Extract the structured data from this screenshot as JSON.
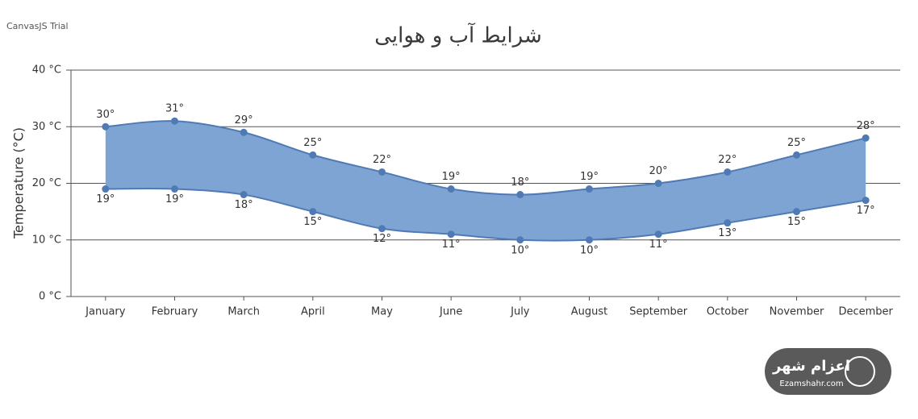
{
  "credit": "CanvasJS Trial",
  "watermark": {
    "title": "اعزام شهر",
    "url": "Ezamshahr.com"
  },
  "chart_data": {
    "type": "rangesplinearea",
    "title": "شرایط آب و هوایی",
    "y_label": "Temperature (°C)",
    "categories": [
      "January",
      "February",
      "March",
      "April",
      "May",
      "June",
      "July",
      "August",
      "September",
      "October",
      "November",
      "December"
    ],
    "color": "#7ea4d3",
    "line_color": "#4f7ab4",
    "series": [
      {
        "values": [
          30,
          31,
          29,
          25,
          22,
          19,
          18,
          19,
          20,
          22,
          25,
          28
        ],
        "value_labels": [
          "30°",
          "31°",
          "29°",
          "25°",
          "22°",
          "19°",
          "18°",
          "19°",
          "20°",
          "22°",
          "25°",
          "28°"
        ]
      },
      {
        "values": [
          19,
          19,
          18,
          15,
          12,
          11,
          10,
          10,
          11,
          13,
          15,
          17
        ],
        "value_labels": [
          "19°",
          "19°",
          "18°",
          "15°",
          "12°",
          "11°",
          "10°",
          "10°",
          "11°",
          "13°",
          "15°",
          "17°"
        ]
      }
    ],
    "ylim": [
      0,
      40
    ],
    "yticks": [
      {
        "value": 0,
        "label": "0 °C"
      },
      {
        "value": 10,
        "label": "10 °C"
      },
      {
        "value": 20,
        "label": "20 °C"
      },
      {
        "value": 30,
        "label": "30 °C"
      },
      {
        "value": 40,
        "label": "40 °C"
      }
    ],
    "grid": true
  }
}
